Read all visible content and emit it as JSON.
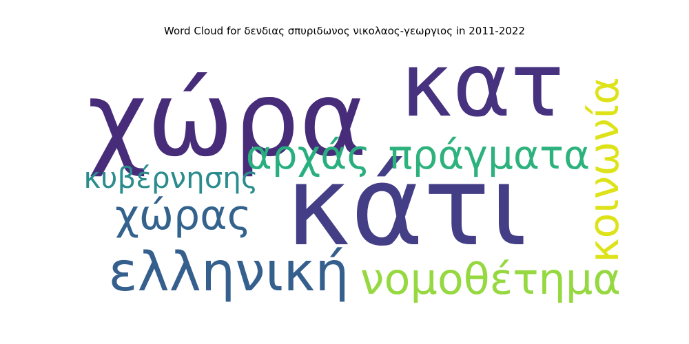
{
  "chart_data": {
    "type": "wordcloud",
    "title": "Word Cloud for δενδιας σπυριδωνος νικολαος-γεωργιος in 2011-2022",
    "words": [
      {
        "text": "χώρα",
        "color": "#472c7a"
      },
      {
        "text": "κατ",
        "color": "#46327e"
      },
      {
        "text": "κάτι",
        "color": "#433e85"
      },
      {
        "text": "αρχάς",
        "color": "#29af7f"
      },
      {
        "text": "πράγματα",
        "color": "#2db27d"
      },
      {
        "text": "κυβέρνησης",
        "color": "#2a8c8c"
      },
      {
        "text": "χώρας",
        "color": "#33638d"
      },
      {
        "text": "ελληνική",
        "color": "#355f8d"
      },
      {
        "text": "νομοθέτημα",
        "color": "#95d840"
      },
      {
        "text": "κοινωνία",
        "color": "#dde318"
      }
    ]
  }
}
